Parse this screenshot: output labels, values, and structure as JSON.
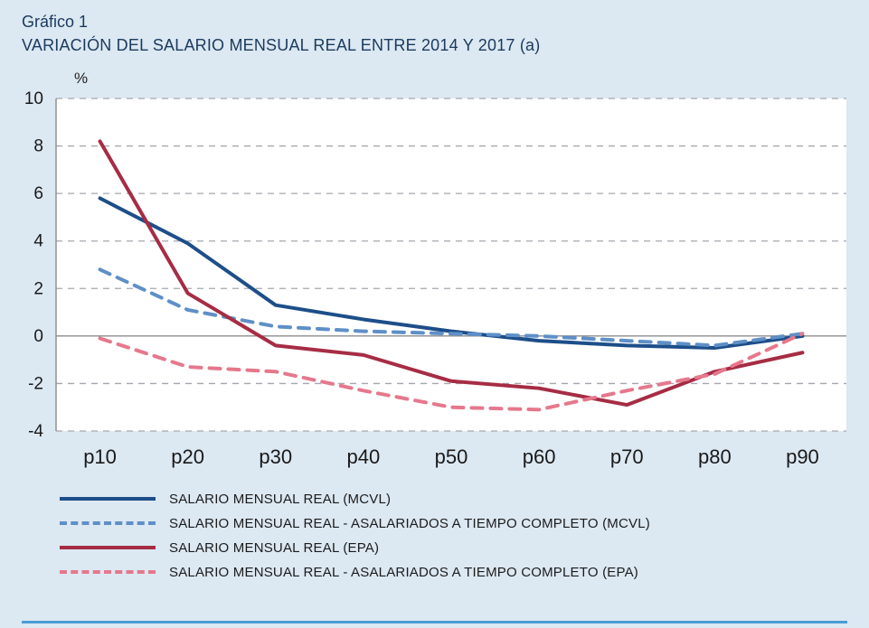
{
  "header": {
    "label": "Gráfico 1",
    "title": "VARIACIÓN DEL SALARIO MENSUAL REAL ENTRE 2014 Y 2017 (a)"
  },
  "colors": {
    "page_bg": "#dce8f2",
    "title": "#1a3a5e",
    "plot_bg": "#ffffff",
    "grid": "#a6a6ae",
    "axis": "#8c8c8c",
    "tick_text": "#1a1a1a",
    "divider": "#4a9cd3"
  },
  "chart_data": {
    "type": "line",
    "title": "VARIACIÓN DEL SALARIO MENSUAL REAL ENTRE 2014 Y 2017 (a)",
    "xlabel": "",
    "ylabel": "%",
    "ylim": [
      -4,
      10
    ],
    "ytick_step": 2,
    "grid": "dashed horizontal gridlines, solid zero line",
    "legend_position": "bottom",
    "categories": [
      "p10",
      "p20",
      "p30",
      "p40",
      "p50",
      "p60",
      "p70",
      "p80",
      "p90"
    ],
    "series": [
      {
        "name": "SALARIO MENSUAL REAL (MCVL)",
        "color": "#1d4e89",
        "style": "solid",
        "values": [
          5.8,
          3.9,
          1.3,
          0.7,
          0.2,
          -0.2,
          -0.4,
          -0.5,
          0.0
        ]
      },
      {
        "name": "SALARIO MENSUAL REAL - ASALARIADOS A TIEMPO COMPLETO (MCVL)",
        "color": "#5f8fc7",
        "style": "dashed",
        "values": [
          2.8,
          1.1,
          0.4,
          0.2,
          0.1,
          0.0,
          -0.2,
          -0.4,
          0.1
        ]
      },
      {
        "name": "SALARIO MENSUAL REAL (EPA)",
        "color": "#a62c44",
        "style": "solid",
        "values": [
          8.2,
          1.8,
          -0.4,
          -0.8,
          -1.9,
          -2.2,
          -2.9,
          -1.5,
          -0.7
        ]
      },
      {
        "name": "SALARIO MENSUAL REAL - ASALARIADOS A TIEMPO COMPLETO (EPA)",
        "color": "#e5788c",
        "style": "dashed",
        "values": [
          -0.1,
          -1.3,
          -1.5,
          -2.3,
          -3.0,
          -3.1,
          -2.3,
          -1.6,
          0.1
        ]
      }
    ]
  }
}
